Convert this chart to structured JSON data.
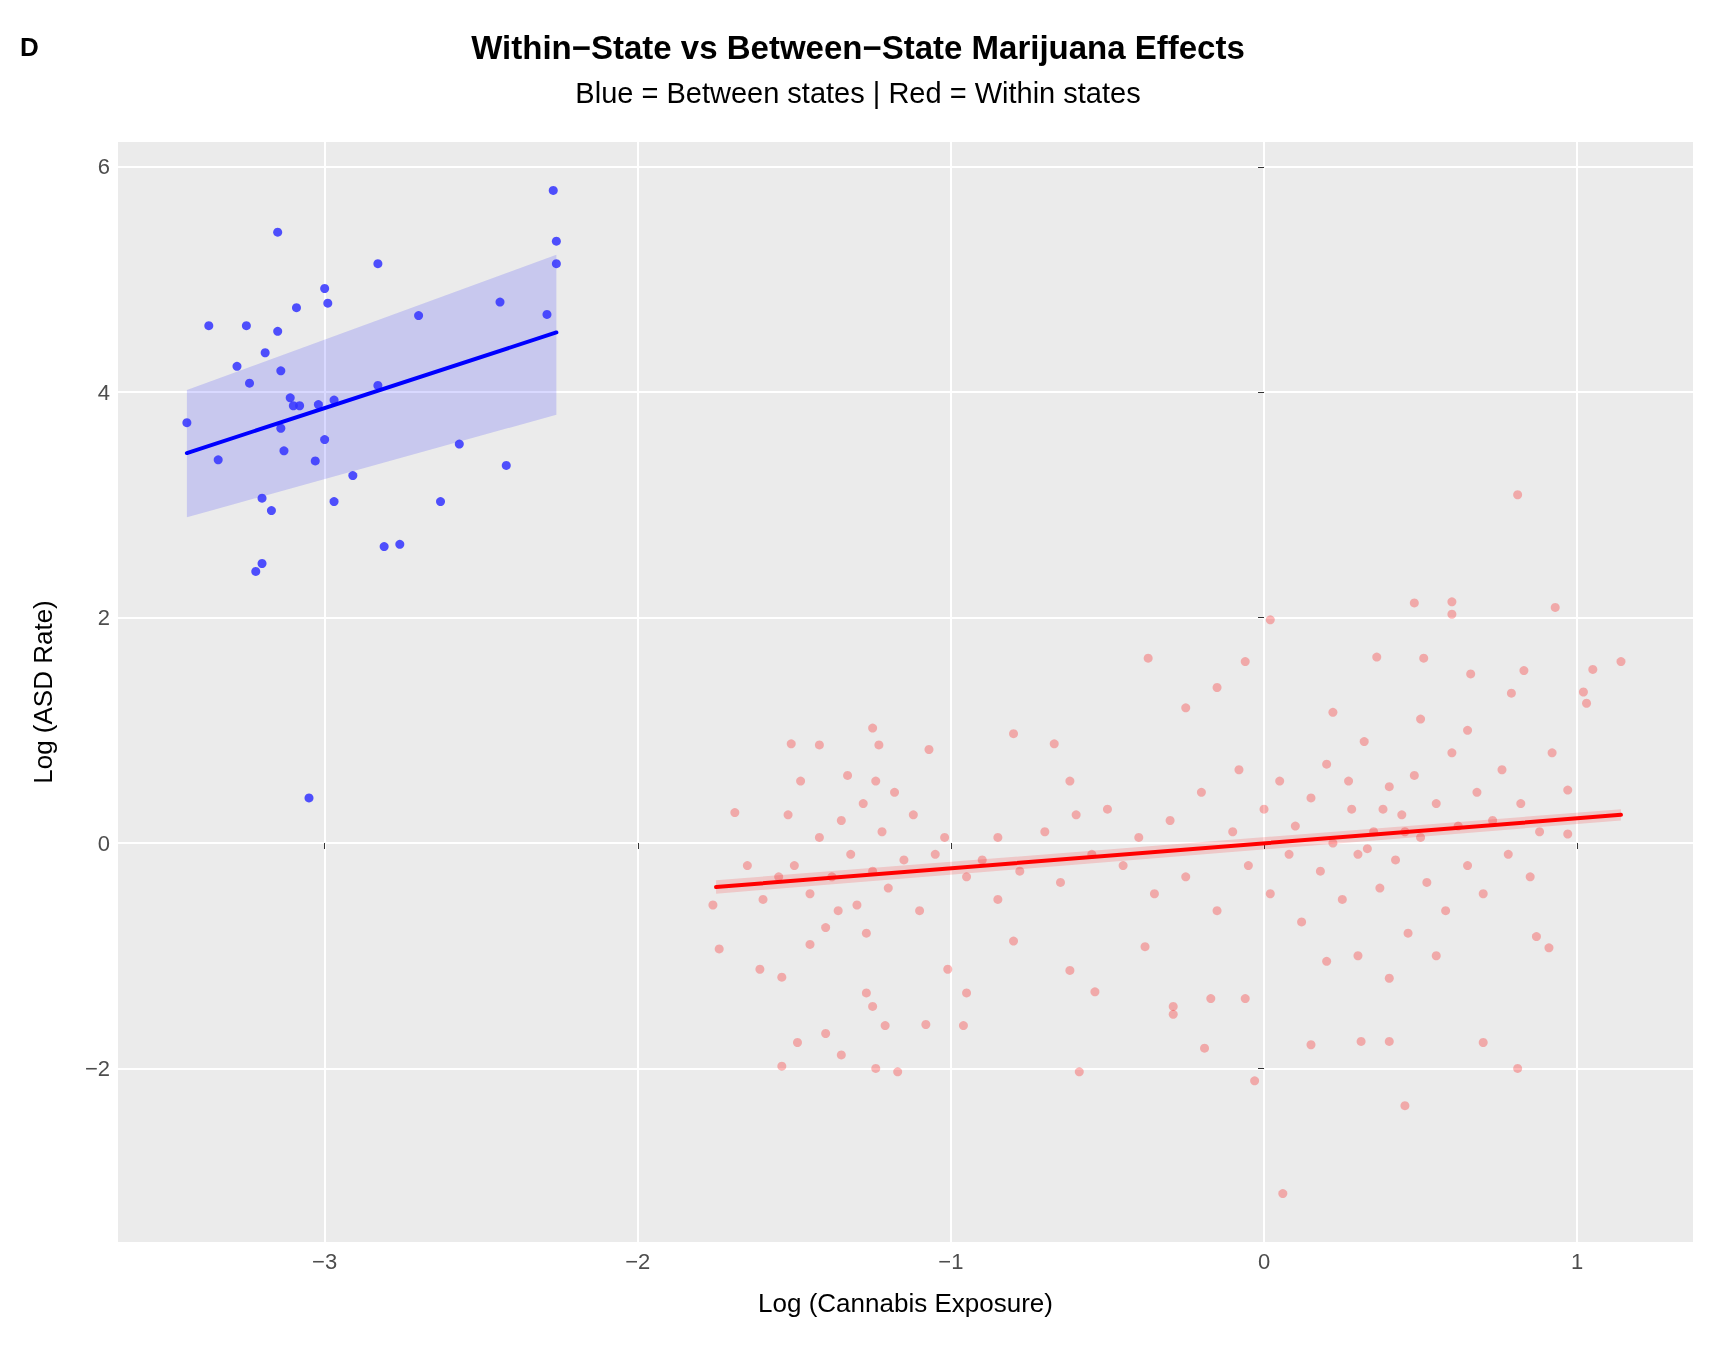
{
  "chart_data": {
    "type": "scatter",
    "title": "Within−State vs Between−State Marijuana Effects",
    "subtitle": "Blue = Between states | Red = Within states",
    "xlabel": "Log (Cannabis Exposure)",
    "ylabel": "Log (ASD Rate)",
    "annotations": [
      "D"
    ],
    "xlim": [
      -3.66,
      1.37
    ],
    "ylim": [
      -3.54,
      6.22
    ],
    "xticks": [
      {
        "value": -3,
        "label": "−3"
      },
      {
        "value": -2,
        "label": "−2"
      },
      {
        "value": -1,
        "label": "−1"
      },
      0,
      1
    ],
    "yticks": [
      {
        "value": -2,
        "label": "−2"
      },
      0,
      2,
      4,
      6
    ],
    "grid": true,
    "series": [
      {
        "marker": "circle",
        "color": "#3333ff",
        "x": [
          -3.44,
          -3.37,
          -3.34,
          -3.28,
          -3.25,
          -3.24,
          -3.22,
          -3.2,
          -3.2,
          -3.19,
          -3.17,
          -3.15,
          -3.15,
          -3.14,
          -3.14,
          -3.13,
          -3.11,
          -3.1,
          -3.09,
          -3.08,
          -3.05,
          -3.03,
          -3.02,
          -3.0,
          -3.0,
          -2.99,
          -2.97,
          -2.97,
          -2.91,
          -2.83,
          -2.83,
          -2.81,
          -2.76,
          -2.7,
          -2.63,
          -2.57,
          -2.44,
          -2.42,
          -2.29,
          -2.27,
          -2.26,
          -2.26
        ],
        "values": [
          3.73,
          4.59,
          3.4,
          4.23,
          4.59,
          4.08,
          2.41,
          2.48,
          3.06,
          4.35,
          2.95,
          5.42,
          4.54,
          4.19,
          3.68,
          3.48,
          3.95,
          3.88,
          4.75,
          3.88,
          0.4,
          3.39,
          3.89,
          3.58,
          4.92,
          4.79,
          3.93,
          3.03,
          3.26,
          5.14,
          4.06,
          2.63,
          2.65,
          4.68,
          3.03,
          3.54,
          4.8,
          3.35,
          4.69,
          5.79,
          5.34,
          5.14
        ]
      },
      {
        "marker": "circle",
        "color": "#ff0000",
        "x": [
          0.81,
          0.02,
          0.48,
          0.6,
          0.6,
          0.93,
          1.14,
          1.05,
          1.02,
          1.03,
          -0.37,
          -0.06,
          0.36,
          0.51,
          0.83,
          0.06,
          0.45,
          -0.03,
          -0.59,
          -1.17,
          -1.54,
          -1.24,
          -0.19,
          0.81,
          0.7,
          0.31,
          0.4,
          -1.49,
          -1.4,
          -1.35,
          -1.08,
          -0.96,
          -1.21,
          -0.54,
          -0.95,
          -1.01,
          -0.38,
          -0.29,
          -0.29,
          -0.06,
          -0.17,
          0.15,
          0.87,
          0.91,
          -1.74,
          -1.61,
          -1.54,
          -1.27,
          -1.25,
          -0.62,
          -0.8,
          -1.76,
          -1.69,
          -1.51,
          -1.42,
          -1.25,
          -1.23,
          -1.07,
          -0.8,
          -0.67,
          -0.25,
          -0.15,
          0.22,
          0.66,
          0.79,
          0.92,
          0.97,
          0.97,
          -1.5,
          -1.45,
          -1.42,
          -1.38,
          -1.35,
          -1.32,
          -1.3,
          -1.28,
          -1.25,
          -1.22,
          -1.2,
          -1.18,
          -1.15,
          -1.12,
          -1.1,
          -1.48,
          -1.4,
          -1.33,
          -1.27,
          -1.55,
          -1.6,
          -1.65,
          -1.52,
          -1.45,
          -1.36,
          -1.24,
          -1.05,
          -1.02,
          -0.95,
          -0.9,
          -0.85,
          -0.78,
          -0.7,
          -0.65,
          -0.6,
          -0.55,
          -0.5,
          -0.45,
          -0.4,
          -0.35,
          -0.3,
          -0.25,
          -0.2,
          -0.62,
          -0.85,
          -0.1,
          -0.05,
          0.0,
          0.02,
          0.05,
          0.08,
          0.1,
          0.12,
          0.15,
          0.18,
          0.2,
          0.22,
          0.25,
          0.28,
          0.3,
          0.32,
          0.35,
          0.37,
          0.4,
          0.42,
          0.44,
          0.46,
          0.48,
          0.5,
          0.52,
          0.55,
          0.58,
          0.6,
          0.62,
          0.65,
          0.68,
          0.7,
          0.73,
          0.76,
          0.78,
          0.82,
          0.85,
          0.88,
          0.3,
          0.4,
          0.5,
          0.2,
          -0.15,
          -0.08,
          0.38,
          0.45,
          0.33,
          0.27,
          0.55,
          0.65
        ],
        "values": [
          3.09,
          1.98,
          2.13,
          2.14,
          2.03,
          2.09,
          1.61,
          1.54,
          1.34,
          1.24,
          1.64,
          1.61,
          1.65,
          1.64,
          1.53,
          -3.11,
          -2.33,
          -2.11,
          -2.03,
          -2.03,
          -1.98,
          -2.0,
          -1.82,
          -2.0,
          -1.77,
          -1.76,
          -1.76,
          -1.77,
          -1.69,
          -1.88,
          -1.61,
          -1.62,
          -1.62,
          -1.32,
          -1.33,
          -1.12,
          -0.92,
          -1.45,
          -1.52,
          -1.38,
          -1.38,
          -1.79,
          -0.83,
          -0.93,
          -0.94,
          -1.12,
          -1.19,
          -1.33,
          -1.45,
          -1.13,
          -0.87,
          -0.55,
          0.27,
          0.88,
          0.87,
          1.02,
          0.87,
          0.83,
          0.97,
          0.88,
          1.2,
          1.38,
          1.16,
          1.5,
          1.33,
          0.8,
          0.08,
          0.47,
          -0.2,
          -0.45,
          0.05,
          -0.3,
          0.2,
          -0.1,
          -0.55,
          0.35,
          -0.25,
          0.1,
          -0.4,
          0.45,
          -0.15,
          0.25,
          -0.6,
          0.55,
          -0.75,
          0.6,
          -0.8,
          -0.3,
          -0.5,
          -0.2,
          0.25,
          -0.9,
          -0.6,
          0.55,
          -0.1,
          0.05,
          -0.3,
          -0.15,
          0.05,
          -0.25,
          0.1,
          -0.35,
          0.25,
          -0.1,
          0.3,
          -0.2,
          0.05,
          -0.45,
          0.2,
          -0.3,
          0.45,
          0.55,
          -0.5,
          0.1,
          -0.2,
          0.3,
          -0.45,
          0.55,
          -0.1,
          0.15,
          -0.7,
          0.4,
          -0.25,
          0.7,
          0.0,
          -0.5,
          0.3,
          -0.1,
          0.9,
          0.1,
          -0.4,
          0.5,
          -0.15,
          0.25,
          -0.8,
          0.6,
          0.05,
          -0.35,
          0.35,
          -0.6,
          0.8,
          0.15,
          -0.2,
          0.45,
          -0.45,
          0.2,
          0.65,
          -0.1,
          0.35,
          -0.3,
          0.1,
          -1.0,
          -1.2,
          1.1,
          -1.05,
          -0.6,
          0.65,
          0.3,
          0.1,
          -0.05,
          0.55,
          -1.0,
          1.0
        ]
      },
      {
        "type": "line",
        "marker": "none",
        "color": "#0000ff",
        "x": [
          -3.44,
          -2.26
        ],
        "values": [
          3.46,
          4.53
        ],
        "lower": [
          2.89,
          3.8
        ],
        "upper": [
          4.02,
          5.22
        ]
      },
      {
        "type": "line",
        "marker": "none",
        "color": "#ff0000",
        "x": [
          -1.75,
          1.14
        ],
        "values": [
          -0.39,
          0.25
        ],
        "lower": [
          -0.45,
          0.2
        ],
        "upper": [
          -0.33,
          0.3
        ]
      }
    ]
  }
}
